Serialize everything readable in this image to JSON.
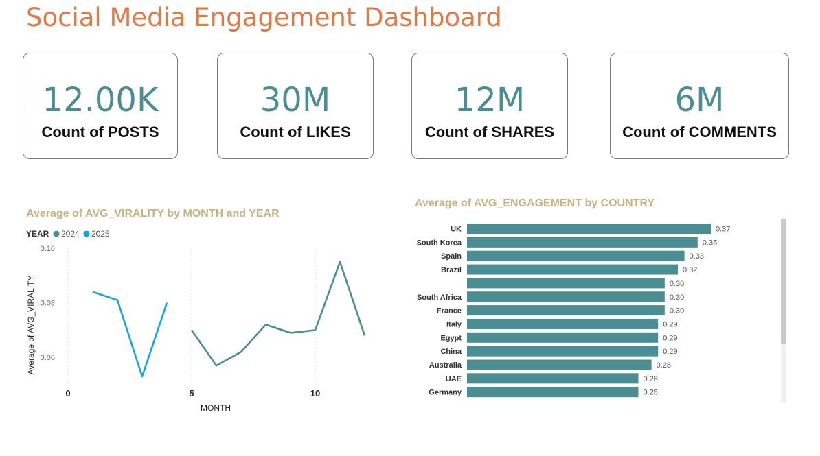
{
  "header": {
    "title": "Social Media Engagement Dashboard"
  },
  "kpis": [
    {
      "value": "12.00K",
      "label": "Count of POSTS"
    },
    {
      "value": "30M",
      "label": "Count of LIKES"
    },
    {
      "value": "12M",
      "label": "Count of SHARES"
    },
    {
      "value": "6M",
      "label": "Count of COMMENTS"
    }
  ],
  "colors": {
    "accent_title": "#e07a45",
    "kpi": "#4a8d93",
    "series_2024": "#4a8d93",
    "series_2025": "#12a5e6",
    "bar": "#4a8d93",
    "chart_title": "#c9b27f"
  },
  "chart_data": [
    {
      "type": "line",
      "title": "Average of AVG_VIRALITY by MONTH and YEAR",
      "xlabel": "MONTH",
      "ylabel": "Average of AVG_VIRALITY",
      "legend_title": "YEAR",
      "legend_position": "top-left",
      "x_ticks": [
        "0",
        "5",
        "10"
      ],
      "y_ticks": [
        "0.10",
        "0.08",
        "0.06"
      ],
      "xlim": [
        0,
        12.5
      ],
      "ylim": [
        0.05,
        0.1
      ],
      "series": [
        {
          "name": "2024",
          "color": "#4a8d93",
          "x": [
            5,
            6,
            7,
            8,
            9,
            10,
            11,
            12
          ],
          "y": [
            0.07,
            0.057,
            0.062,
            0.072,
            0.069,
            0.07,
            0.095,
            0.068
          ]
        },
        {
          "name": "2025",
          "color": "#12a5e6",
          "x": [
            1,
            2,
            3,
            4
          ],
          "y": [
            0.084,
            0.081,
            0.053,
            0.08
          ]
        }
      ]
    },
    {
      "type": "bar",
      "orientation": "horizontal",
      "title": "Average of AVG_ENGAGEMENT by COUNTRY",
      "categories": [
        "UK",
        "South Korea",
        "Spain",
        "Brazil",
        "",
        "South Africa",
        "France",
        "Italy",
        "Egypt",
        "China",
        "Australia",
        "UAE",
        "Germany"
      ],
      "values": [
        0.37,
        0.35,
        0.33,
        0.32,
        0.3,
        0.3,
        0.3,
        0.29,
        0.29,
        0.29,
        0.28,
        0.26,
        0.26
      ],
      "value_labels": [
        "0.37",
        "0.35",
        "0.33",
        "0.32",
        "0.30",
        "0.30",
        "0.30",
        "0.29",
        "0.29",
        "0.29",
        "0.28",
        "0.26",
        "0.26"
      ],
      "grid": false
    }
  ]
}
